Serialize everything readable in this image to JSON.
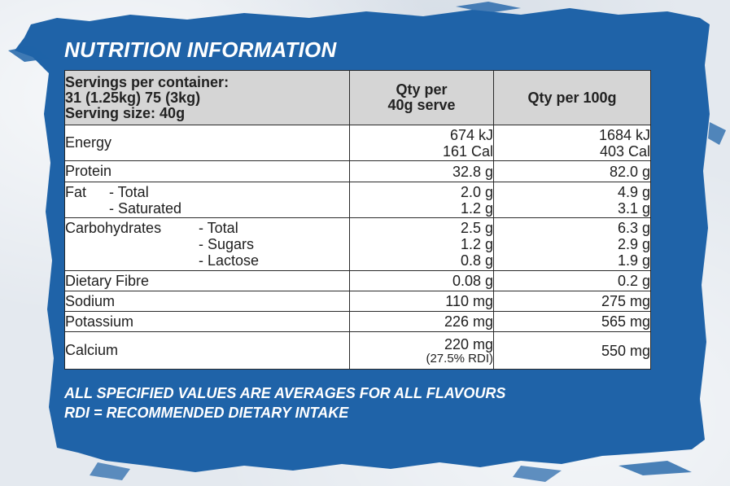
{
  "title": "NUTRITION INFORMATION",
  "header": {
    "servings_line1": "Servings per container:",
    "servings_line2": "31 (1.25kg) 75 (3kg)",
    "servings_line3": "Serving size: 40g",
    "col_serve_line1": "Qty per",
    "col_serve_line2": "40g serve",
    "col_100g": "Qty per 100g"
  },
  "rows": {
    "energy": {
      "label": "Energy",
      "serve_kj": "674 kJ",
      "serve_cal": "161 Cal",
      "g100_kj": "1684 kJ",
      "g100_cal": "403 Cal"
    },
    "protein": {
      "label": "Protein",
      "serve": "32.8 g",
      "g100": "82.0 g"
    },
    "fat": {
      "label": "Fat",
      "sub": [
        "- Total",
        "- Saturated"
      ],
      "serve": [
        "2.0 g",
        "1.2 g"
      ],
      "g100": [
        "4.9 g",
        "3.1 g"
      ]
    },
    "carbs": {
      "label": "Carbohydrates",
      "sub": [
        "- Total",
        "- Sugars",
        "- Lactose"
      ],
      "serve": [
        "2.5 g",
        "1.2 g",
        "0.8 g"
      ],
      "g100": [
        "6.3 g",
        "2.9 g",
        "1.9 g"
      ]
    },
    "fibre": {
      "label": "Dietary Fibre",
      "serve": "0.08 g",
      "g100": "0.2 g"
    },
    "sodium": {
      "label": "Sodium",
      "serve": "110 mg",
      "g100": "275 mg"
    },
    "potassium": {
      "label": "Potassium",
      "serve": "226 mg",
      "g100": "565 mg"
    },
    "calcium": {
      "label": "Calcium",
      "serve": "220 mg",
      "serve_rdi": "(27.5% RDI)",
      "g100": "550 mg"
    }
  },
  "footnotes": {
    "line1": "ALL SPECIFIED VALUES ARE AVERAGES FOR ALL FLAVOURS",
    "line2": "RDI = RECOMMENDED DIETARY INTAKE"
  },
  "colors": {
    "brush_blue": "#1f63a8",
    "header_grey": "#d5d5d5"
  }
}
